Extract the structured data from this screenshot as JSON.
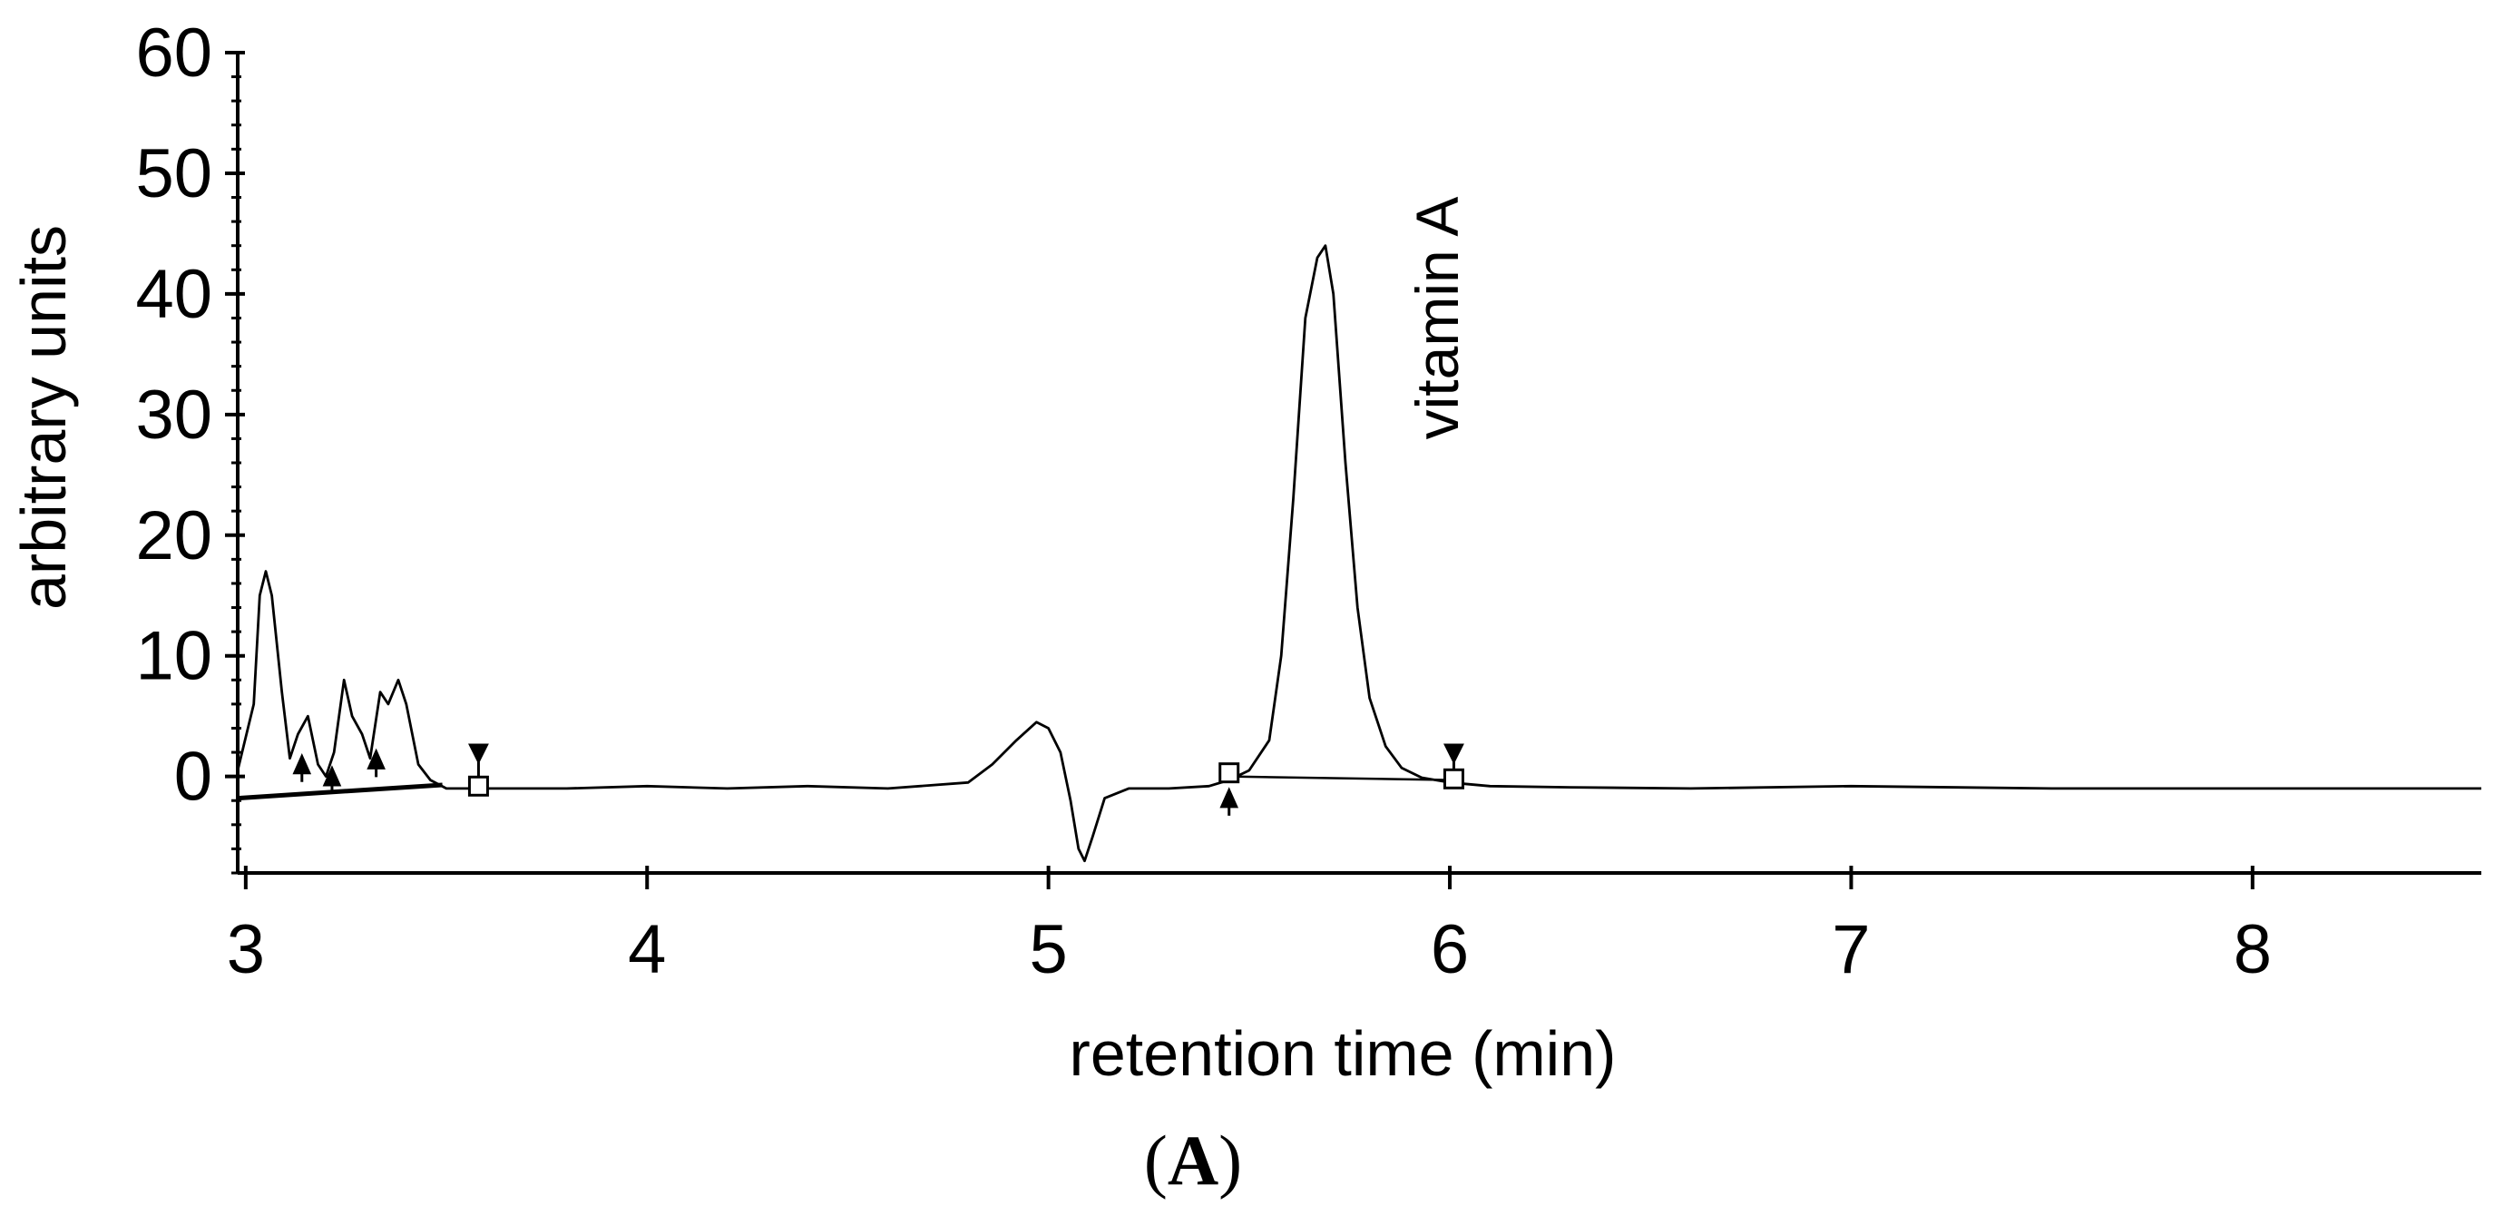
{
  "chart_data": {
    "type": "line",
    "xlabel": "retention time (min)",
    "ylabel": "arbitrary units",
    "panel_label_open": "(",
    "panel_label_letter": "A",
    "panel_label_close": ")",
    "xlim": [
      2.98,
      8.57
    ],
    "ylim": [
      -8,
      60
    ],
    "x_ticks": [
      3,
      4,
      5,
      6,
      7,
      8
    ],
    "y_ticks": [
      0,
      10,
      20,
      30,
      40,
      50,
      60
    ],
    "grid": false,
    "legend": "none",
    "annotations": [
      {
        "text": "vitamin A",
        "x": 5.97,
        "y": 38,
        "rotation": -90
      }
    ],
    "series": [
      {
        "color": "#000000",
        "x": [
          2.98,
          3.02,
          3.035,
          3.05,
          3.065,
          3.09,
          3.11,
          3.13,
          3.155,
          3.18,
          3.2,
          3.22,
          3.245,
          3.265,
          3.29,
          3.31,
          3.335,
          3.355,
          3.38,
          3.4,
          3.43,
          3.46,
          3.5,
          3.6,
          3.8,
          4.0,
          4.2,
          4.4,
          4.6,
          4.8,
          4.86,
          4.92,
          4.97,
          5.0,
          5.03,
          5.055,
          5.075,
          5.09,
          5.11,
          5.14,
          5.2,
          5.3,
          5.4,
          5.45,
          5.5,
          5.55,
          5.58,
          5.61,
          5.64,
          5.67,
          5.69,
          5.71,
          5.74,
          5.77,
          5.8,
          5.84,
          5.88,
          5.93,
          6.0,
          6.1,
          6.3,
          6.6,
          7.0,
          7.5,
          8.0,
          8.57
        ],
        "y": [
          0.5,
          6,
          15,
          17,
          15,
          7,
          1.5,
          3.5,
          5,
          1,
          0,
          2,
          8,
          5,
          3.5,
          1.5,
          7,
          6,
          8,
          6,
          1,
          -0.3,
          -1,
          -1,
          -1,
          -0.8,
          -1,
          -0.8,
          -1,
          -0.5,
          1,
          3,
          4.5,
          4,
          2,
          -2,
          -6,
          -7,
          -5,
          -1.8,
          -1,
          -1,
          -0.8,
          -0.3,
          0.5,
          3,
          10,
          23,
          38,
          43,
          44,
          40,
          26,
          14,
          6.5,
          2.5,
          0.7,
          -0.1,
          -0.5,
          -0.8,
          -0.9,
          -1,
          -0.8,
          -1,
          -1,
          -1
        ]
      }
    ],
    "integration_baselines": [
      {
        "x": [
          2.98,
          3.49
        ],
        "y": [
          -1.8,
          -0.7
        ]
      },
      {
        "x": [
          5.45,
          6.01
        ],
        "y": [
          0,
          -0.3
        ]
      }
    ],
    "peak_markers_up": [
      {
        "x": 3.14,
        "y": 1.2
      },
      {
        "x": 3.215,
        "y": 0.2
      },
      {
        "x": 3.325,
        "y": 1.6
      },
      {
        "x": 5.45,
        "y": -1.6
      }
    ],
    "peak_markers_down": [
      {
        "x": 3.58,
        "y": 1.7
      },
      {
        "x": 6.01,
        "y": 1.7
      }
    ],
    "boundary_squares": [
      {
        "x": 3.58,
        "y": -0.8
      },
      {
        "x": 5.45,
        "y": 0.3
      },
      {
        "x": 6.01,
        "y": -0.2
      }
    ]
  }
}
